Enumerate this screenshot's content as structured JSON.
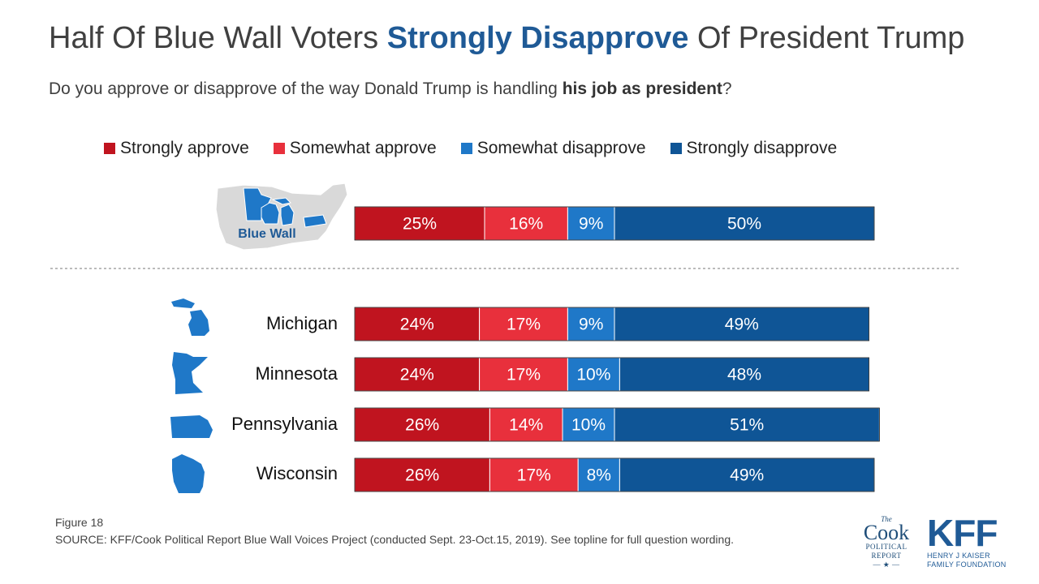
{
  "title": {
    "part1": "Half Of Blue Wall Voters ",
    "highlight": "Strongly Disapprove",
    "part2": " Of President Trump"
  },
  "subtitle": {
    "part1": "Do you approve or disapprove of the way Donald Trump is handling ",
    "bold": "his job as president",
    "part2": "?"
  },
  "colors": {
    "strongly_approve": "#c0141f",
    "somewhat_approve": "#e8303c",
    "somewhat_disapprove": "#1f78c8",
    "strongly_disapprove": "#0f5596",
    "map_blue": "#1f78c8",
    "map_gray": "#d9d9d9"
  },
  "chart_data": {
    "type": "bar",
    "orientation": "horizontal-stacked",
    "series": [
      {
        "name": "Strongly approve"
      },
      {
        "name": "Somewhat approve"
      },
      {
        "name": "Somewhat disapprove"
      },
      {
        "name": "Strongly disapprove"
      }
    ],
    "rows": [
      {
        "label": "",
        "map_label": "Blue Wall",
        "map": "blue-wall-map-icon",
        "values": [
          25,
          16,
          9,
          50
        ]
      },
      {
        "label": "Michigan",
        "map": "michigan-map-icon",
        "values": [
          24,
          17,
          9,
          49
        ]
      },
      {
        "label": "Minnesota",
        "map": "minnesota-map-icon",
        "values": [
          24,
          17,
          10,
          48
        ]
      },
      {
        "label": "Pennsylvania",
        "map": "pennsylvania-map-icon",
        "values": [
          26,
          14,
          10,
          51
        ]
      },
      {
        "label": "Wisconsin",
        "map": "wisconsin-map-icon",
        "values": [
          26,
          17,
          8,
          49
        ]
      }
    ],
    "value_suffix": "%",
    "legend_position": "top"
  },
  "footer": {
    "figure": "Figure 18",
    "source": "SOURCE: KFF/Cook Political Report Blue Wall Voices Project (conducted Sept. 23-Oct.15, 2019). See topline for full question wording."
  },
  "logos": {
    "cook": {
      "the": "The",
      "name": "Cook",
      "line1": "POLITICAL",
      "line2": "REPORT"
    },
    "kff": {
      "name": "KFF",
      "line1": "HENRY J KAISER",
      "line2": "FAMILY FOUNDATION"
    }
  }
}
